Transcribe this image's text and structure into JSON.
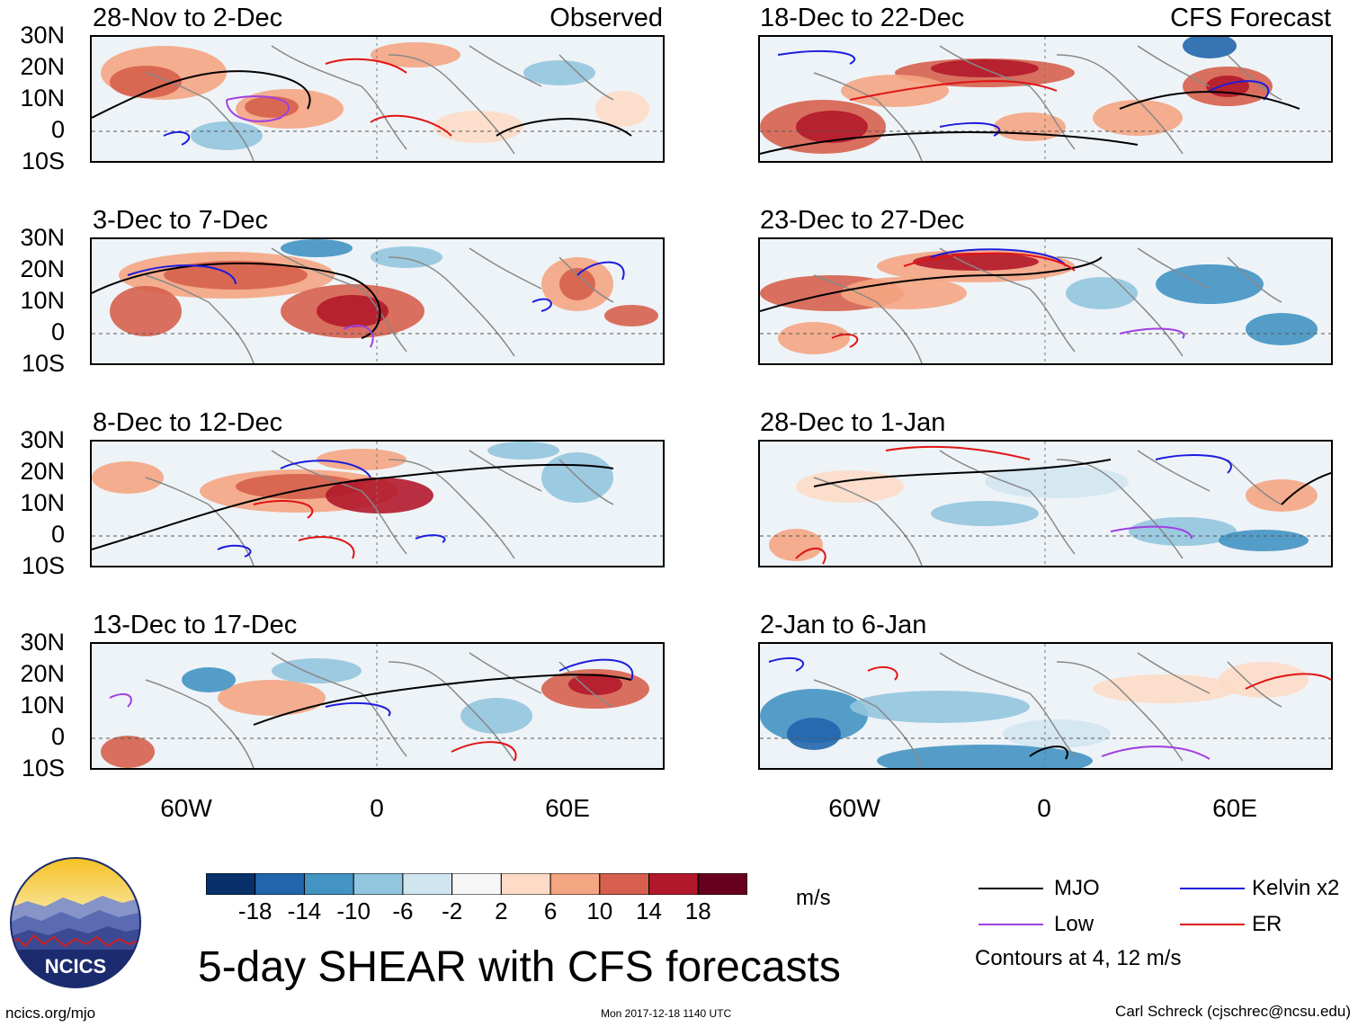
{
  "colors": {
    "mjo": "#000000",
    "kelvin": "#1c1cdc",
    "low": "#a040e0",
    "er": "#e01414",
    "land": "#888888",
    "colorbar": [
      "#08306b",
      "#2166ac",
      "#4393c3",
      "#92c5de",
      "#d1e5f0",
      "#f7f7f7",
      "#fddbc7",
      "#f4a582",
      "#d6604d",
      "#b2182b",
      "#67001f"
    ]
  },
  "labels": {
    "observed": "Observed",
    "forecast": "CFS Forecast"
  },
  "panels": [
    {
      "title": "28-Nov to 2-Dec"
    },
    {
      "title": "3-Dec to 7-Dec"
    },
    {
      "title": "8-Dec to 12-Dec"
    },
    {
      "title": "13-Dec to 17-Dec"
    },
    {
      "title": "18-Dec to 22-Dec"
    },
    {
      "title": "23-Dec to 27-Dec"
    },
    {
      "title": "28-Dec to 1-Jan"
    },
    {
      "title": "2-Jan to 6-Jan"
    }
  ],
  "lat_labels": [
    "30N",
    "20N",
    "10N",
    "0",
    "10S"
  ],
  "lon_labels": [
    "60W",
    "0",
    "60E"
  ],
  "colorbar": {
    "ticks": [
      "-18",
      "-14",
      "-10",
      "-6",
      "-2",
      "2",
      "6",
      "10",
      "14",
      "18"
    ],
    "units": "m/s"
  },
  "legend": {
    "mjo": "MJO",
    "kelvin": "Kelvin x2",
    "low": "Low",
    "er": "ER",
    "contours": "Contours at 4, 12 m/s"
  },
  "logo": {
    "text": "NCICS"
  },
  "title": "5-day SHEAR with CFS forecasts",
  "footer": {
    "url": "ncics.org/mjo",
    "timestamp": "Mon 2017-12-18 1140 UTC",
    "author": "Carl Schreck (cjschrec@ncsu.edu)"
  }
}
